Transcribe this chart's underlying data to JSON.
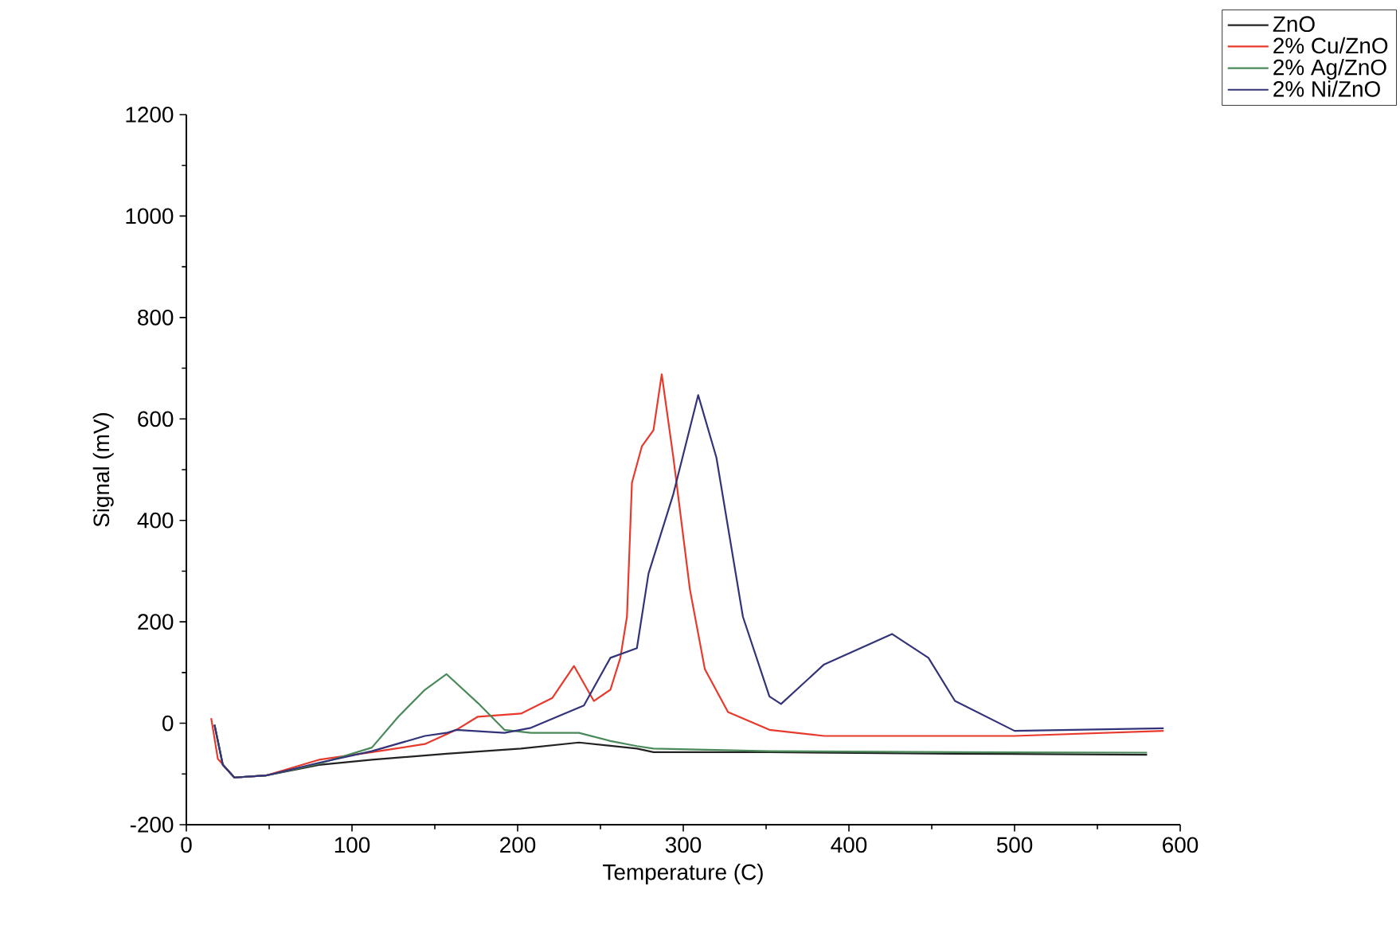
{
  "chart_data": {
    "type": "line",
    "xlabel": "Temperature (C)",
    "ylabel": "Signal (mV)",
    "xlim": [
      0,
      600
    ],
    "ylim": [
      -200,
      1200
    ],
    "xticks": [
      0,
      100,
      200,
      300,
      400,
      500,
      600
    ],
    "yticks": [
      -200,
      0,
      200,
      400,
      600,
      800,
      1000,
      1200
    ],
    "grid": false,
    "legend": "top right",
    "marker": "none",
    "line_style": "solid",
    "series": [
      {
        "name": "ZnO",
        "color": "#222222",
        "x": [
          17,
          22,
          29,
          48,
          80,
          112,
          157,
          202,
          237,
          272,
          282,
          352,
          464,
          580
        ],
        "values": [
          -3,
          -82,
          -107,
          -103,
          -82,
          -72,
          -60,
          -50,
          -38,
          -50,
          -57,
          -57,
          -60,
          -62
        ]
      },
      {
        "name": "2% Cu/ZnO",
        "color": "#e8392c",
        "x": [
          15,
          19,
          29,
          48,
          80,
          112,
          144,
          163,
          176,
          202,
          221,
          234,
          246,
          256,
          262,
          266,
          269,
          275,
          282,
          287,
          294,
          304,
          313,
          327,
          352,
          385,
          500,
          590
        ],
        "values": [
          10,
          -70,
          -107,
          -103,
          -72,
          -57,
          -41,
          -13,
          13,
          19,
          50,
          113,
          44,
          66,
          129,
          210,
          474,
          546,
          578,
          688,
          524,
          264,
          107,
          22,
          -13,
          -25,
          -25,
          -15
        ]
      },
      {
        "name": "2% Ag/ZnO",
        "color": "#4a8a5a",
        "x": [
          17,
          22,
          29,
          48,
          80,
          112,
          128,
          144,
          157,
          176,
          192,
          208,
          237,
          256,
          272,
          282,
          352,
          464,
          580
        ],
        "values": [
          -3,
          -82,
          -107,
          -103,
          -80,
          -48,
          13,
          66,
          97,
          40,
          -13,
          -19,
          -19,
          -35,
          -45,
          -50,
          -55,
          -57,
          -58
        ]
      },
      {
        "name": "2% Ni/ZnO",
        "color": "#33337a",
        "x": [
          17,
          22,
          29,
          48,
          80,
          112,
          144,
          157,
          163,
          192,
          208,
          240,
          256,
          272,
          279,
          294,
          309,
          320,
          336,
          352,
          359,
          385,
          426,
          448,
          464,
          500,
          590
        ],
        "values": [
          -3,
          -82,
          -107,
          -103,
          -78,
          -55,
          -25,
          -19,
          -13,
          -19,
          -9,
          35,
          129,
          148,
          295,
          452,
          647,
          524,
          210,
          53,
          38,
          116,
          176,
          129,
          44,
          -15,
          -10
        ]
      }
    ]
  }
}
